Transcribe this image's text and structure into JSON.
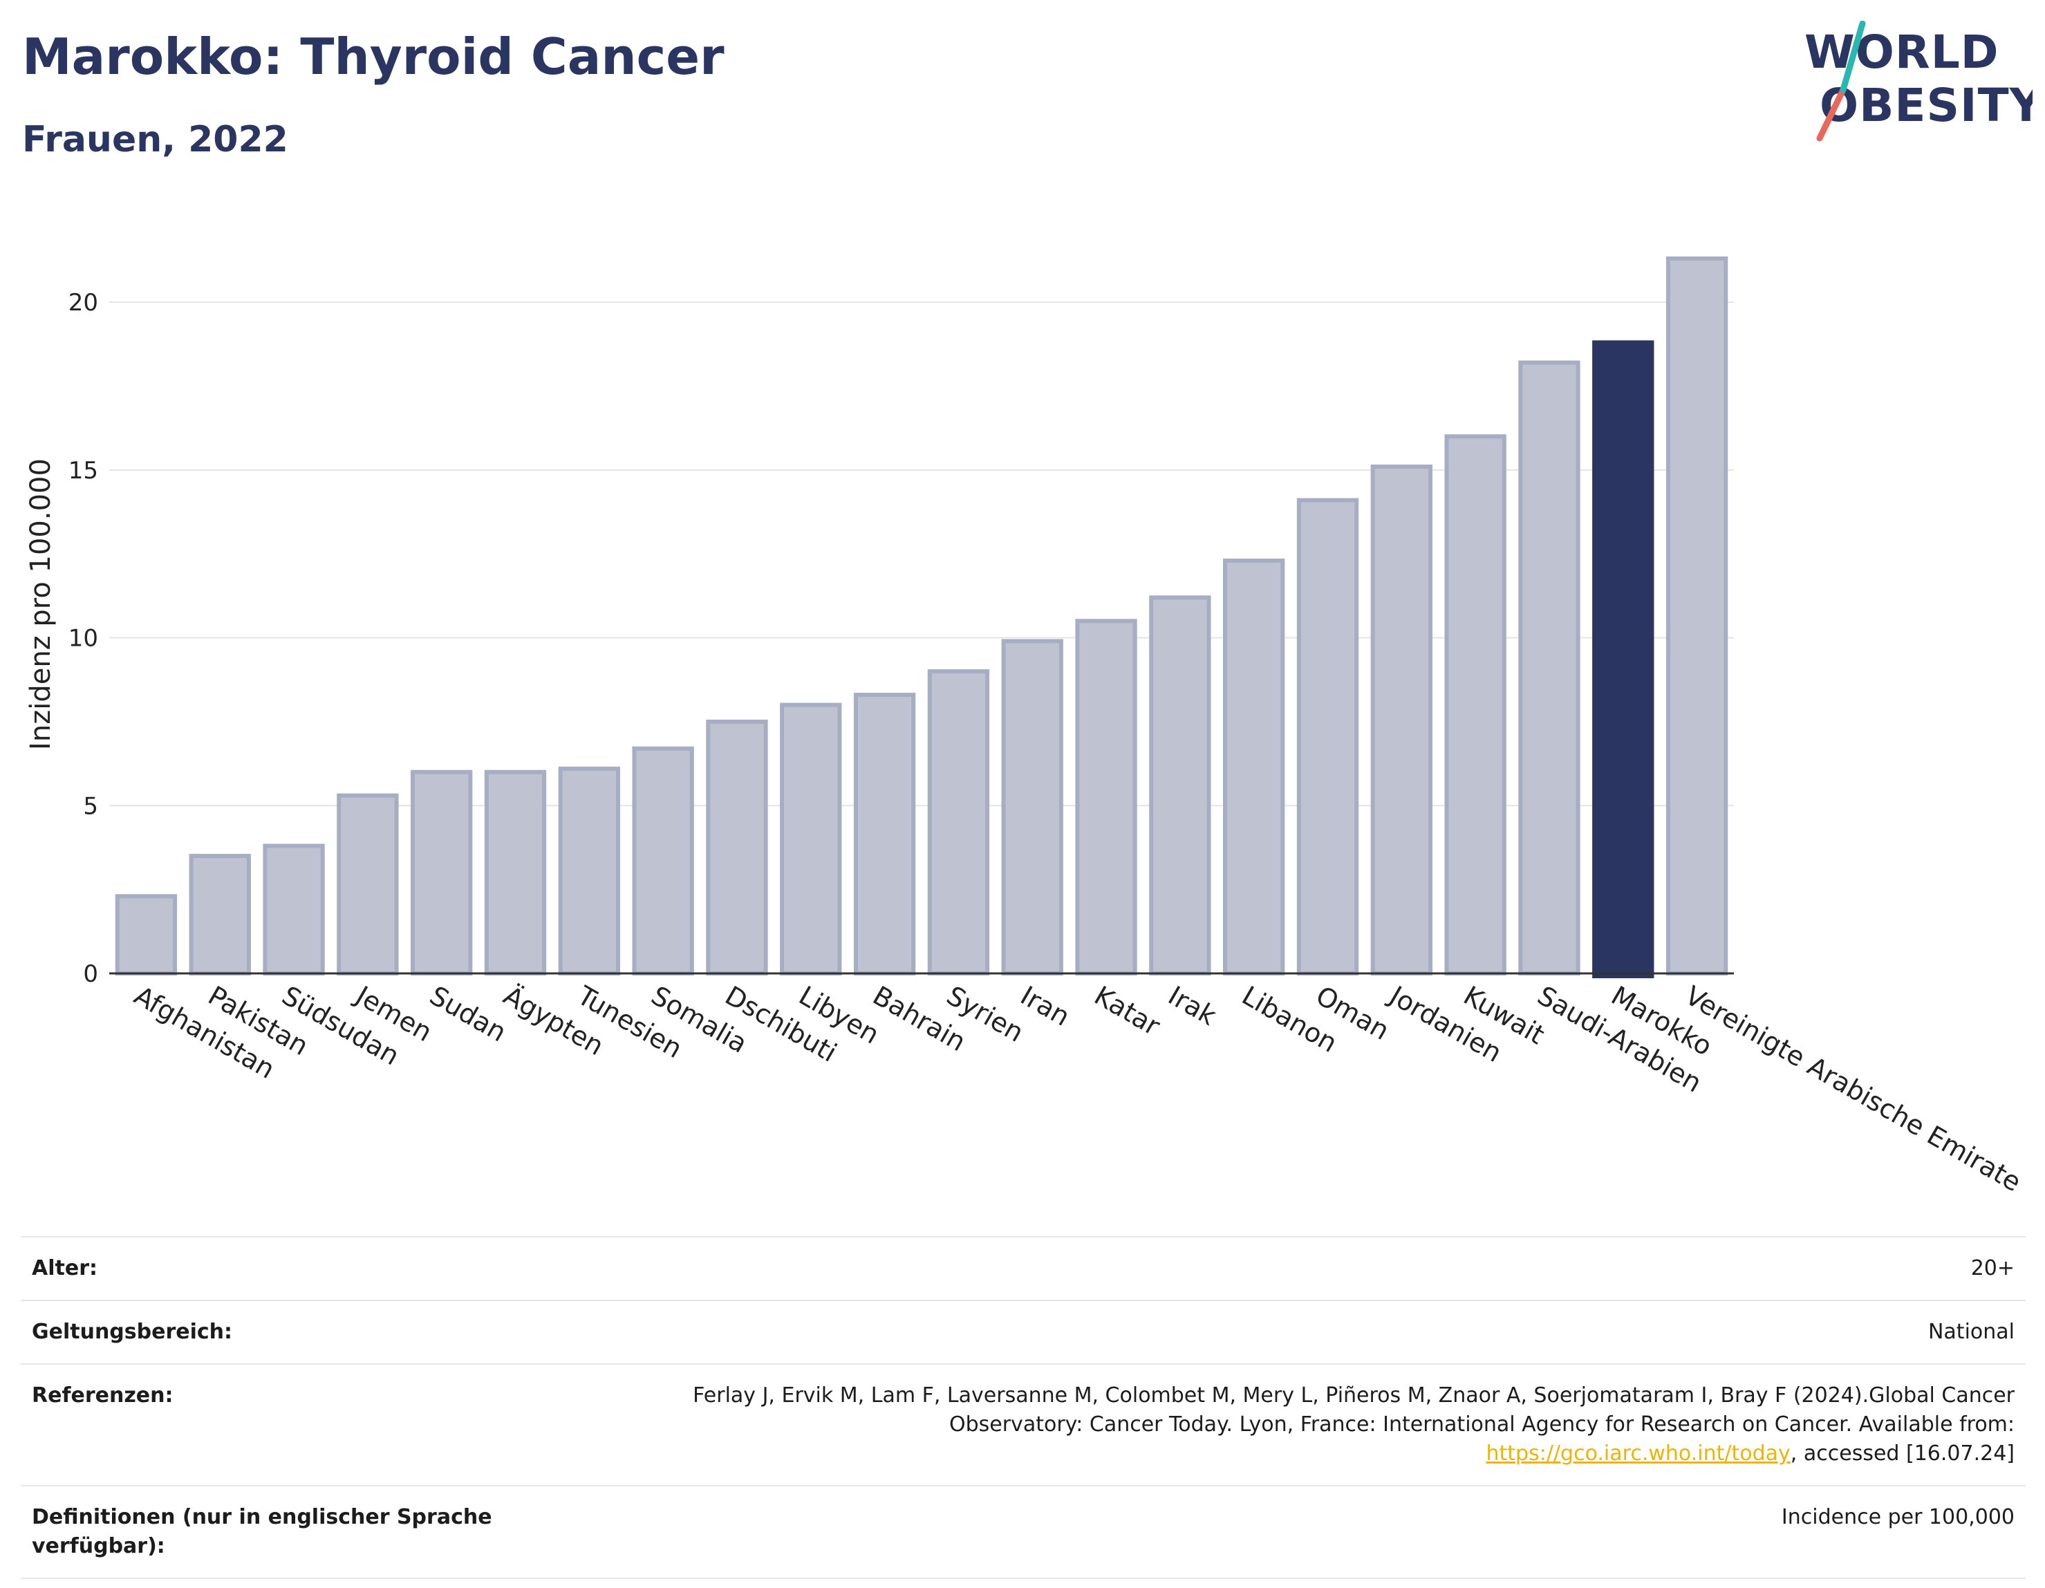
{
  "header": {
    "title": "Marokko: Thyroid Cancer",
    "subtitle": "Frauen, 2022"
  },
  "logo": {
    "line1": "WORLD",
    "line2": "OBESITY",
    "colors": {
      "text": "#2b3561",
      "slash_teal": "#2ab7b0",
      "slash_red": "#e8695c"
    }
  },
  "chart_data": {
    "type": "bar",
    "title": "Marokko: Thyroid Cancer",
    "subtitle": "Frauen, 2022",
    "ylabel": "Inzidenz pro 100.000",
    "xlabel": "",
    "ylim": [
      0,
      22
    ],
    "yticks": [
      0,
      5,
      10,
      15,
      20
    ],
    "grid": true,
    "highlight": "Marokko",
    "colors": {
      "bar": "#bfc3d1",
      "bar_border": "#a7adc3",
      "highlight": "#2b3561"
    },
    "categories": [
      "Afghanistan",
      "Pakistan",
      "Südsudan",
      "Jemen",
      "Sudan",
      "Ägypten",
      "Tunesien",
      "Somalia",
      "Dschibuti",
      "Libyen",
      "Bahrain",
      "Syrien",
      "Iran",
      "Katar",
      "Irak",
      "Libanon",
      "Oman",
      "Jordanien",
      "Kuwait",
      "Saudi-Arabien",
      "Marokko",
      "Vereinigte Arabische Emirate"
    ],
    "values": [
      2.3,
      3.5,
      3.8,
      5.3,
      6.0,
      6.0,
      6.1,
      6.7,
      7.5,
      8.0,
      8.3,
      9.0,
      9.9,
      10.5,
      11.2,
      12.3,
      14.1,
      15.1,
      16.0,
      18.2,
      18.8,
      21.3
    ]
  },
  "info": {
    "age_label": "Alter:",
    "age_value": "20+",
    "scope_label": "Geltungsbereich:",
    "scope_value": "National",
    "ref_label": "Referenzen:",
    "ref_text_1": "Ferlay J, Ervik M, Lam F, Laversanne M, Colombet M, Mery L, Piñeros M, Znaor A, Soerjomataram I, Bray F (2024).Global Cancer Observatory: Cancer Today. Lyon, France: International Agency for Research on Cancer. Available from: ",
    "ref_link": "https://gco.iarc.who.int/today",
    "ref_text_2": ", accessed [16.07.24]",
    "def_label": "Definitionen (nur in englischer Sprache verfügbar):",
    "def_value": "Incidence per 100,000"
  }
}
